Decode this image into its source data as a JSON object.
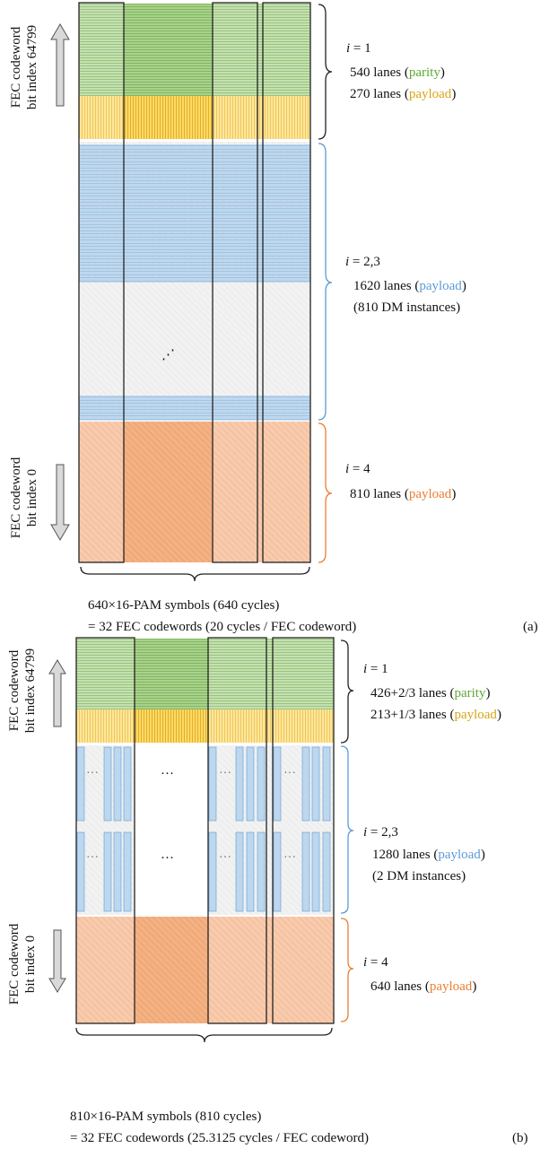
{
  "colors": {
    "parity": "#5fa832",
    "payload_yellow": "#d9a514",
    "payload_blue": "#5b9bd5",
    "payload_orange": "#ed7d31",
    "green_fill": "#a9d18e",
    "yellow_fill": "#ffd966",
    "blue_fill": "#bdd7ee",
    "orange_fill": "#f4b183",
    "grey_fill": "#f2f2f2"
  },
  "a": {
    "top_label": [
      "FEC codeword",
      "bit index 64799"
    ],
    "bottom_label": [
      "FEC codeword",
      "bit index 0"
    ],
    "g1": {
      "i": "i",
      "eq": " = 1",
      "line1_pre": "540 lanes (",
      "line1_word": "parity",
      "line1_post": ")",
      "line2_pre": "270 lanes (",
      "line2_word": "payload",
      "line2_post": ")"
    },
    "g2": {
      "i": "i",
      "eq": " = 2,3",
      "line1_pre": "1620 lanes (",
      "line1_word": "payload",
      "line1_post": ")",
      "line2": "(810 DM instances)"
    },
    "g3": {
      "i": "i",
      "eq": " = 4",
      "line1_pre": "810 lanes (",
      "line1_word": "payload",
      "line1_post": ")"
    },
    "bottom1": "640×16-PAM symbols (640 cycles)",
    "bottom2": "= 32 FEC codewords (20 cycles / FEC codeword)",
    "tag": "(a)",
    "dots": "⋰"
  },
  "b": {
    "top_label": [
      "FEC codeword",
      "bit index 64799"
    ],
    "bottom_label": [
      "FEC codeword",
      "bit index 0"
    ],
    "g1": {
      "i": "i",
      "eq": " = 1",
      "line1_pre": "426+2/3 lanes (",
      "line1_word": "parity",
      "line1_post": ")",
      "line2_pre": "213+1/3 lanes (",
      "line2_word": "payload",
      "line2_post": ")"
    },
    "g2": {
      "i": "i",
      "eq": " = 2,3",
      "line1_pre": "1280 lanes (",
      "line1_word": "payload",
      "line1_post": ")",
      "line2": "(2 DM instances)"
    },
    "g3": {
      "i": "i",
      "eq": " = 4",
      "line1_pre": "640 lanes (",
      "line1_word": "payload",
      "line1_post": ")"
    },
    "bottom1": "810×16-PAM symbols (810 cycles)",
    "bottom2": "= 32 FEC codewords (25.3125 cycles / FEC codeword)",
    "tag": "(b)",
    "dots": "···"
  }
}
